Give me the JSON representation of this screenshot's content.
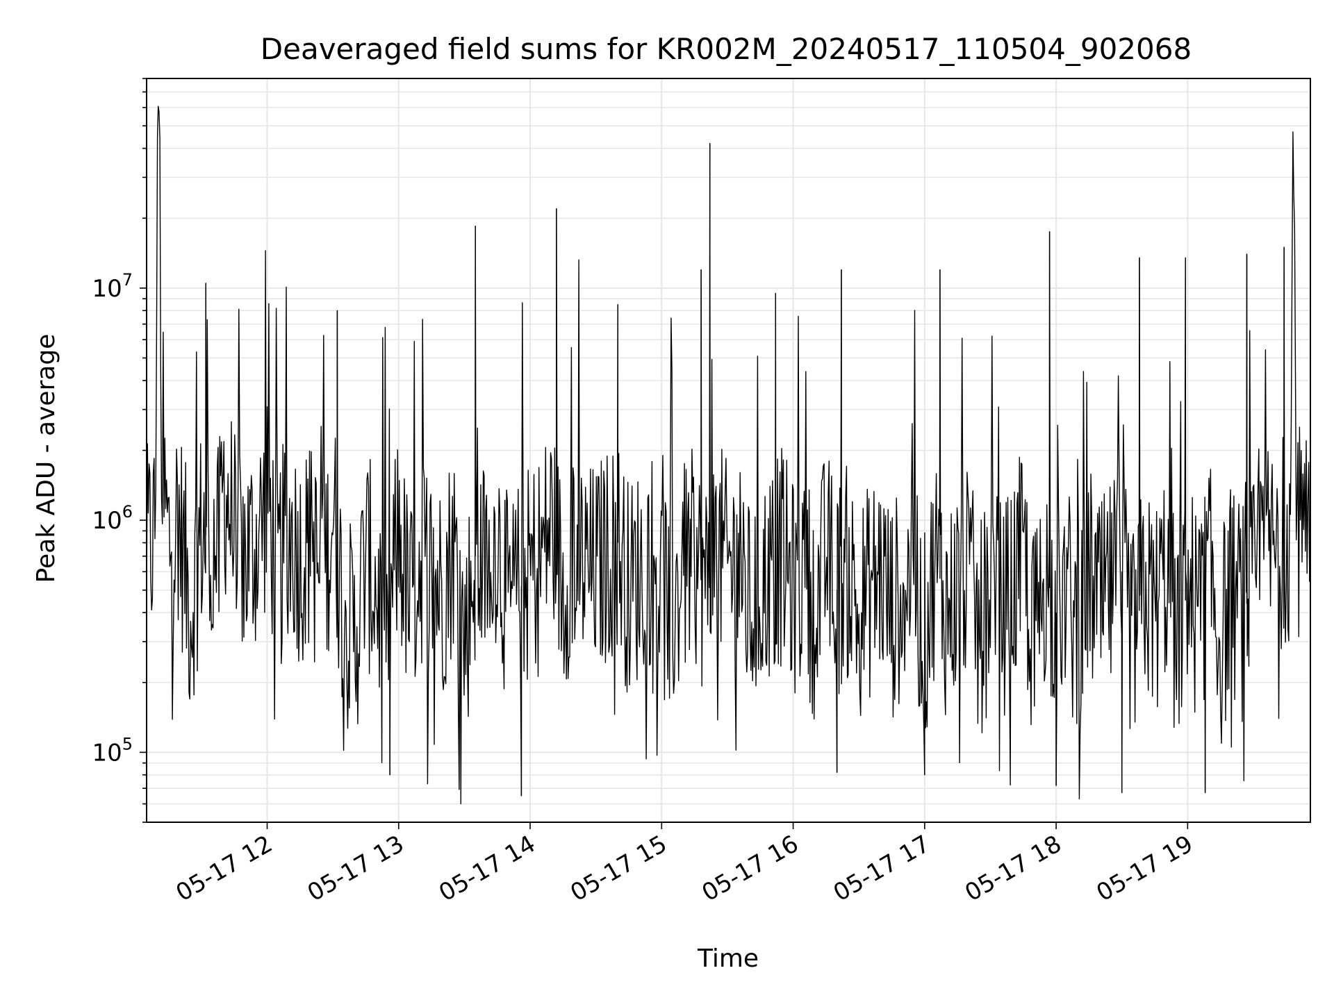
{
  "chart_data": {
    "type": "line",
    "title": "Deaveraged field sums for KR002M_20240517_110504_902068",
    "xlabel": "Time",
    "ylabel": "Peak ADU - average",
    "y_scale": "log",
    "ylim": [
      50000,
      80000000
    ],
    "x_range": [
      "05-17 11:05",
      "05-17 19:56"
    ],
    "x_ticks": [
      "05-17 12",
      "05-17 13",
      "05-17 14",
      "05-17 15",
      "05-17 16",
      "05-17 17",
      "05-17 18",
      "05-17 19"
    ],
    "y_ticks": [
      {
        "base": "10",
        "exp": "5",
        "value": 100000
      },
      {
        "base": "10",
        "exp": "6",
        "value": 1000000
      },
      {
        "base": "10",
        "exp": "7",
        "value": 10000000
      }
    ],
    "grid": true,
    "line_color": "#000000",
    "grid_color": "#e6e6e6",
    "series": [
      {
        "x": [
          "05-17 11:05",
          "05-17 11:09",
          "05-17 11:10",
          "05-17 11:11",
          "05-17 11:12",
          "05-17 11:13",
          "05-17 11:15",
          "05-17 11:20",
          "05-17 11:25",
          "05-17 11:30",
          "05-17 11:35",
          "05-17 11:38",
          "05-17 11:40",
          "05-17 11:45",
          "05-17 11:50",
          "05-17 11:55",
          "05-17 12:00",
          "05-17 12:05",
          "05-17 12:10",
          "05-17 12:15",
          "05-17 12:20",
          "05-17 12:25",
          "05-17 12:30",
          "05-17 12:35",
          "05-17 12:40",
          "05-17 12:45",
          "05-17 12:50",
          "05-17 12:55",
          "05-17 13:00",
          "05-17 13:05",
          "05-17 13:10",
          "05-17 13:15",
          "05-17 13:20",
          "05-17 13:25",
          "05-17 13:30",
          "05-17 13:35",
          "05-17 13:40",
          "05-17 13:45",
          "05-17 13:50",
          "05-17 13:55",
          "05-17 14:00",
          "05-17 14:05",
          "05-17 14:10",
          "05-17 14:15",
          "05-17 14:20",
          "05-17 14:25",
          "05-17 14:30",
          "05-17 14:35",
          "05-17 14:40",
          "05-17 14:45",
          "05-17 14:50",
          "05-17 14:55",
          "05-17 15:00",
          "05-17 15:05",
          "05-17 15:10",
          "05-17 15:15",
          "05-17 15:20",
          "05-17 15:25",
          "05-17 15:30",
          "05-17 15:35",
          "05-17 15:40",
          "05-17 15:45",
          "05-17 15:50",
          "05-17 15:55",
          "05-17 16:00",
          "05-17 16:05",
          "05-17 16:10",
          "05-17 16:15",
          "05-17 16:20",
          "05-17 16:25",
          "05-17 16:30",
          "05-17 16:35",
          "05-17 16:40",
          "05-17 16:45",
          "05-17 16:50",
          "05-17 16:55",
          "05-17 17:00",
          "05-17 17:05",
          "05-17 17:10",
          "05-17 17:15",
          "05-17 17:20",
          "05-17 17:25",
          "05-17 17:30",
          "05-17 17:35",
          "05-17 17:40",
          "05-17 17:45",
          "05-17 17:50",
          "05-17 17:55",
          "05-17 18:00",
          "05-17 18:05",
          "05-17 18:10",
          "05-17 18:15",
          "05-17 18:20",
          "05-17 18:25",
          "05-17 18:30",
          "05-17 18:35",
          "05-17 18:40",
          "05-17 18:45",
          "05-17 18:50",
          "05-17 18:55",
          "05-17 19:00",
          "05-17 19:05",
          "05-17 19:10",
          "05-17 19:15",
          "05-17 19:20",
          "05-17 19:25",
          "05-17 19:30",
          "05-17 19:35",
          "05-17 19:40",
          "05-17 19:45",
          "05-17 19:47",
          "05-17 19:48",
          "05-17 19:50",
          "05-17 19:52",
          "05-17 19:56"
        ],
        "y": [
          700000,
          900000,
          55000000,
          60000000,
          900000,
          1200000,
          800000,
          1000000,
          400000,
          900000,
          800000,
          700000,
          1500000,
          900000,
          700000,
          800000,
          1200000,
          600000,
          900000,
          700000,
          800000,
          500000,
          1100000,
          400000,
          300000,
          700000,
          500000,
          300000,
          900000,
          400000,
          700000,
          600000,
          500000,
          800000,
          300000,
          700000,
          600000,
          900000,
          400000,
          500000,
          600000,
          700000,
          1000000,
          500000,
          800000,
          600000,
          600000,
          700000,
          800000,
          500000,
          600000,
          700000,
          500000,
          400000,
          600000,
          700000,
          500000,
          800000,
          600000,
          700000,
          400000,
          500000,
          600000,
          700000,
          500000,
          600000,
          400000,
          700000,
          500000,
          600000,
          400000,
          500000,
          600000,
          400000,
          500000,
          600000,
          300000,
          700000,
          400000,
          500000,
          600000,
          300000,
          600000,
          400000,
          500000,
          700000,
          300000,
          600000,
          400000,
          500000,
          300000,
          600000,
          400000,
          500000,
          600000,
          300000,
          500000,
          400000,
          600000,
          300000,
          500000,
          400000,
          600000,
          300000,
          500000,
          400000,
          500000,
          800000,
          700000,
          900000,
          900000,
          55000000,
          1000000,
          800000,
          700000
        ],
        "spikes": [
          {
            "x": "05-17 11:32",
            "y": 10500000
          },
          {
            "x": "05-17 12:32",
            "y": 8000000
          },
          {
            "x": "05-17 13:35",
            "y": 18500000
          },
          {
            "x": "05-17 14:12",
            "y": 22000000
          },
          {
            "x": "05-17 14:40",
            "y": 8500000
          },
          {
            "x": "05-17 15:18",
            "y": 12000000
          },
          {
            "x": "05-17 15:22",
            "y": 42000000
          },
          {
            "x": "05-17 15:52",
            "y": 9500000
          },
          {
            "x": "05-17 16:22",
            "y": 12000000
          },
          {
            "x": "05-17 17:07",
            "y": 12000000
          },
          {
            "x": "05-17 17:57",
            "y": 17500000
          },
          {
            "x": "05-17 18:38",
            "y": 13500000
          },
          {
            "x": "05-17 18:59",
            "y": 13500000
          },
          {
            "x": "05-17 19:27",
            "y": 14000000
          },
          {
            "x": "05-17 19:44",
            "y": 15000000
          }
        ],
        "dips": [
          {
            "x": "05-17 12:56",
            "y": 80000
          },
          {
            "x": "05-17 13:56",
            "y": 65000
          },
          {
            "x": "05-17 16:20",
            "y": 82000
          },
          {
            "x": "05-17 17:00",
            "y": 80000
          },
          {
            "x": "05-17 18:00",
            "y": 72000
          },
          {
            "x": "05-17 18:30",
            "y": 67000
          },
          {
            "x": "05-17 19:08",
            "y": 67000
          }
        ]
      }
    ]
  }
}
